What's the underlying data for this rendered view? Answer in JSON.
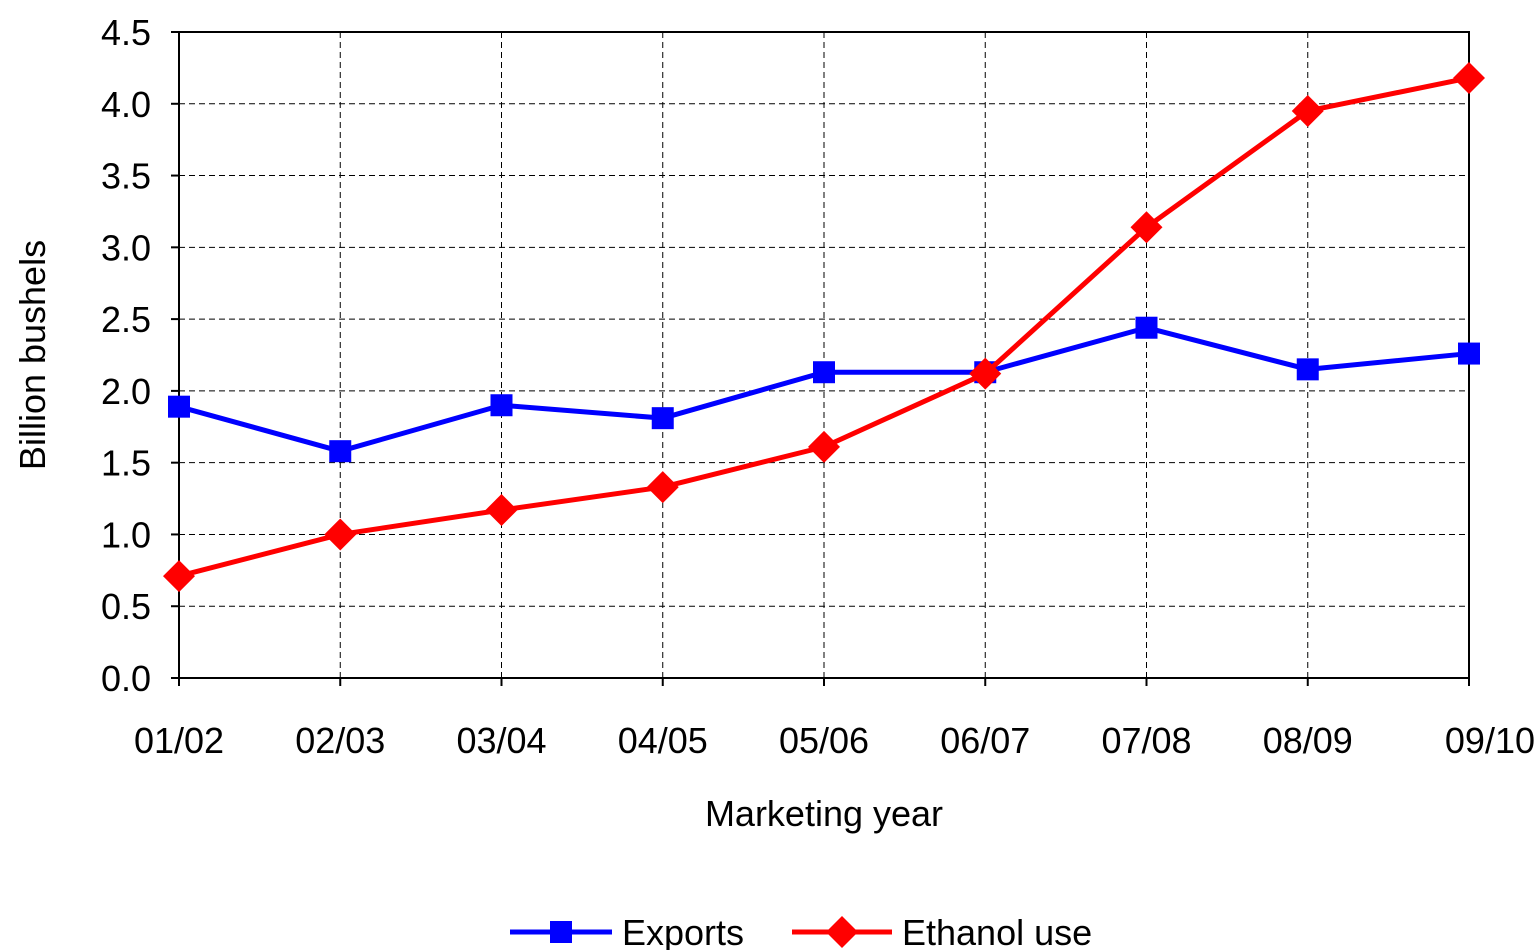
{
  "chart_data": {
    "type": "line",
    "title": "",
    "xlabel": "Marketing year",
    "ylabel": "Billion bushels",
    "categories": [
      "01/02",
      "02/03",
      "03/04",
      "04/05",
      "05/06",
      "06/07",
      "07/08",
      "08/09",
      "09/10"
    ],
    "ylim": [
      0,
      4.5
    ],
    "yticks": [
      "0.0",
      "0.5",
      "1.0",
      "1.5",
      "2.0",
      "2.5",
      "3.0",
      "3.5",
      "4.0",
      "4.5"
    ],
    "grid": true,
    "legend_position": "bottom",
    "series": [
      {
        "name": "Exports",
        "color": "#0000ff",
        "marker": "square",
        "values": [
          1.89,
          1.58,
          1.9,
          1.81,
          2.13,
          2.13,
          2.44,
          2.15,
          2.26
        ]
      },
      {
        "name": "Ethanol use",
        "color": "#ff0000",
        "marker": "diamond",
        "values": [
          0.71,
          1.0,
          1.17,
          1.33,
          1.61,
          2.12,
          3.14,
          3.95,
          4.18
        ]
      }
    ]
  }
}
